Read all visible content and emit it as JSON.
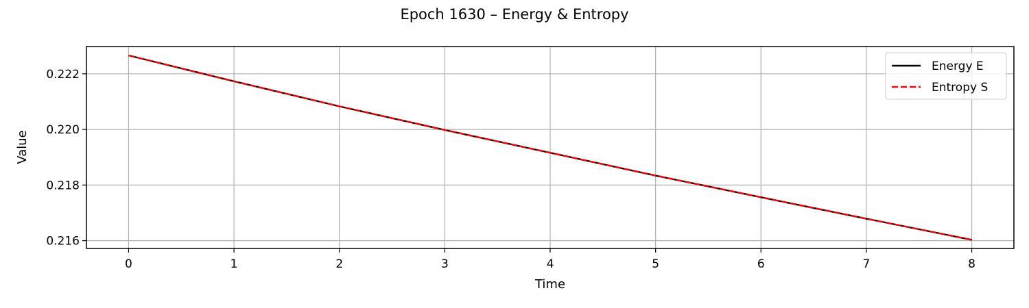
{
  "chart_data": {
    "type": "line",
    "title": "Epoch 1630 – Energy & Entropy",
    "xlabel": "Time",
    "ylabel": "Value",
    "xlim": [
      -0.4,
      8.4
    ],
    "ylim": [
      0.21572,
      0.22298
    ],
    "xticks": [
      0,
      1,
      2,
      3,
      4,
      5,
      6,
      7,
      8
    ],
    "yticks": [
      0.216,
      0.218,
      0.22,
      0.222
    ],
    "xtick_labels": [
      "0",
      "1",
      "2",
      "3",
      "4",
      "5",
      "6",
      "7",
      "8"
    ],
    "ytick_labels": [
      "0.216",
      "0.218",
      "0.220",
      "0.222"
    ],
    "grid": true,
    "legend": "top-right",
    "series": [
      {
        "name": "Energy E",
        "color": "#000000",
        "style": "solid",
        "x": [
          0,
          1,
          2,
          3,
          4,
          5,
          6,
          7,
          8
        ],
        "values": [
          0.22266,
          0.22173,
          0.22083,
          0.21998,
          0.21916,
          0.21834,
          0.21756,
          0.21679,
          0.21603
        ]
      },
      {
        "name": "Entropy S",
        "color": "#ff0000",
        "style": "dashed",
        "x": [
          0,
          1,
          2,
          3,
          4,
          5,
          6,
          7,
          8
        ],
        "values": [
          0.22266,
          0.22173,
          0.22083,
          0.21998,
          0.21916,
          0.21834,
          0.21756,
          0.21679,
          0.21603
        ]
      }
    ]
  }
}
